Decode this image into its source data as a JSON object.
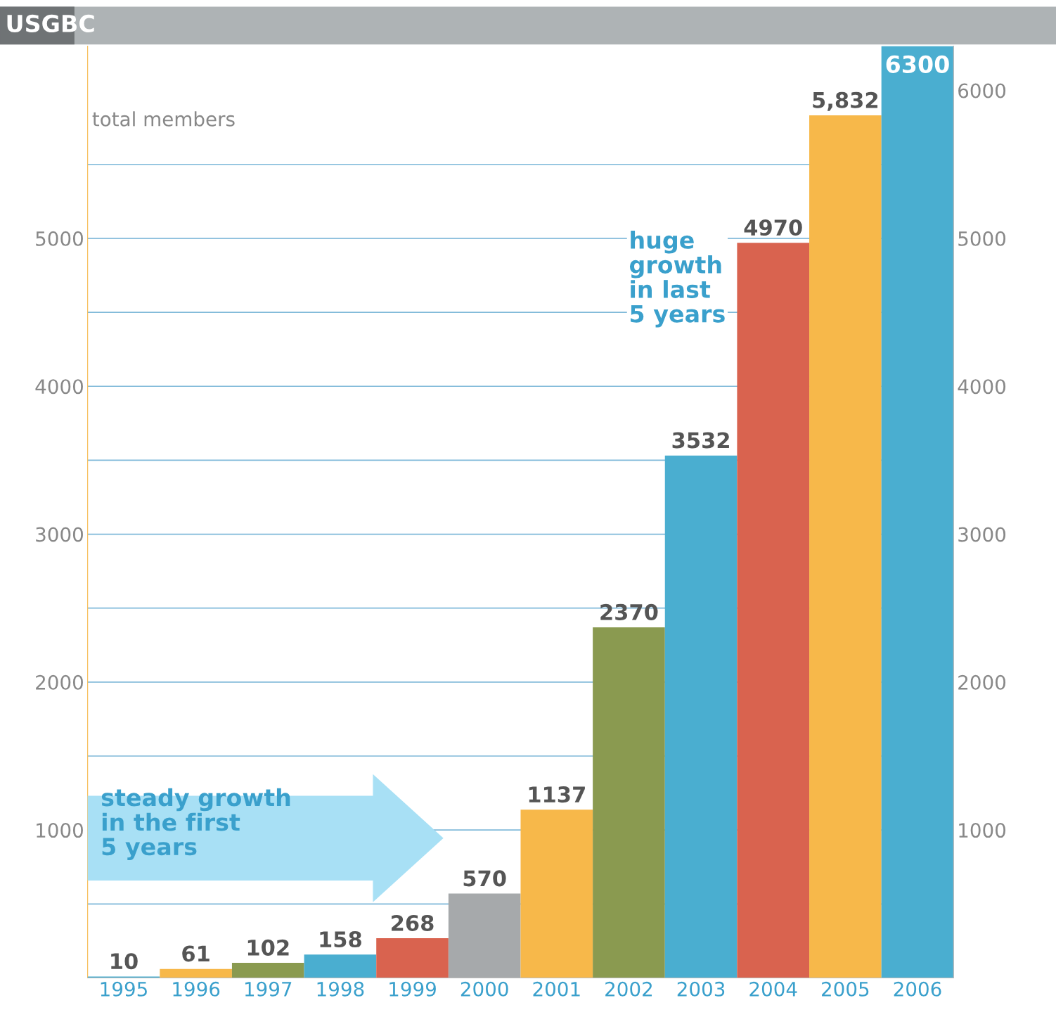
{
  "chart_data": {
    "type": "bar",
    "title": "USGBC",
    "ylabel": "total members",
    "categories": [
      "1995",
      "1996",
      "1997",
      "1998",
      "1999",
      "2000",
      "2001",
      "2002",
      "2003",
      "2004",
      "2005",
      "2006"
    ],
    "values": [
      10,
      61,
      102,
      158,
      268,
      570,
      1137,
      2370,
      3532,
      4970,
      5832,
      6300
    ],
    "colors": [
      "#4aaed0",
      "#f7b84a",
      "#8a9a50",
      "#4aaed0",
      "#d9634f",
      "#a6a9ab",
      "#f7b84a",
      "#8a9a50",
      "#4aaed0",
      "#d9634f",
      "#f7b84a",
      "#4aaed0"
    ],
    "value_labels": [
      "10",
      "61",
      "102",
      "158",
      "268",
      "570",
      "1137",
      "2370",
      "3532",
      "4970",
      "5,832",
      "6300"
    ],
    "ylim": [
      0,
      6300
    ],
    "yticks": [
      {
        "value": 500,
        "label": null
      },
      1000,
      {
        "value": 1500,
        "label": null
      },
      2000,
      {
        "value": 2500,
        "label": null
      },
      3000,
      {
        "value": 3500,
        "label": null
      },
      4000,
      {
        "value": 4500,
        "label": null
      },
      5000,
      {
        "value": 5500,
        "label": null
      }
    ],
    "y2lim": [
      0,
      6300
    ],
    "y2ticks": [
      1000,
      2000,
      3000,
      4000,
      5000,
      6000
    ],
    "grid": "y",
    "annotations": [
      "steady growth\nin the first\n5 years",
      "huge\ngrowth\nin last\n5 years"
    ]
  }
}
